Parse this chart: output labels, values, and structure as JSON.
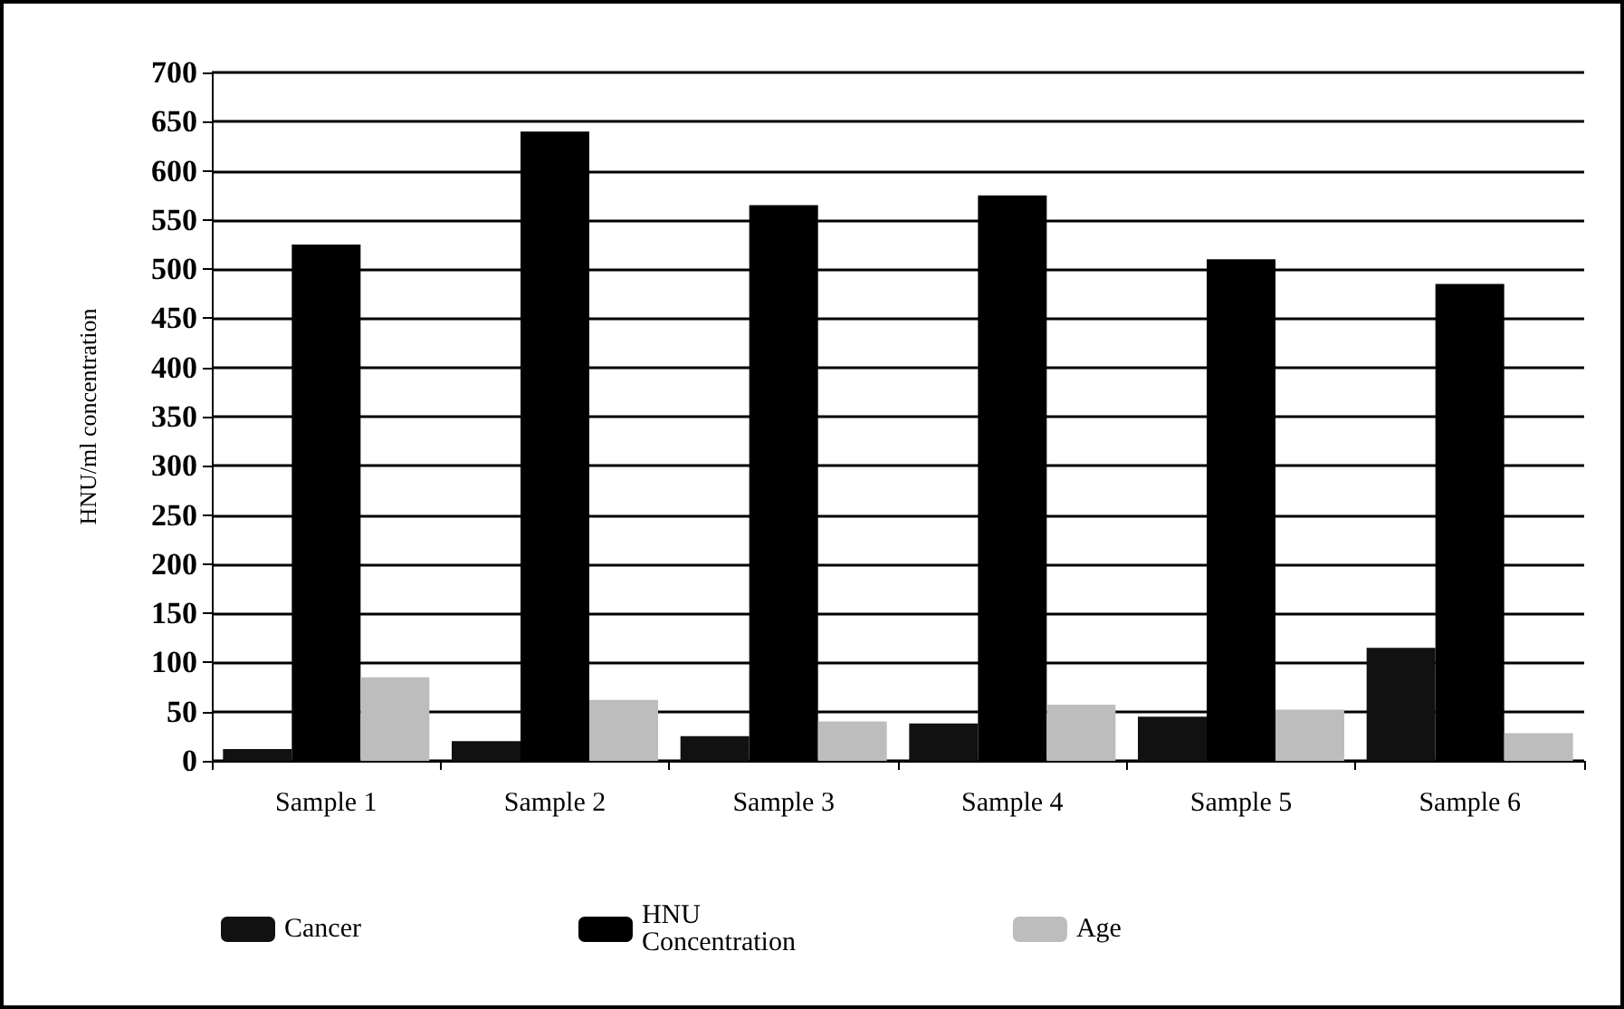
{
  "chart_data": {
    "type": "bar",
    "ylabel": "HNU/ml concentration",
    "categories": [
      "Sample 1",
      "Sample 2",
      "Sample 3",
      "Sample 4",
      "Sample 5",
      "Sample 6"
    ],
    "series": [
      {
        "name": "Cancer",
        "color": "#111111",
        "values": [
          12,
          20,
          25,
          38,
          45,
          115
        ]
      },
      {
        "name": "HNU Concentration",
        "color": "#000000",
        "values": [
          525,
          640,
          565,
          575,
          510,
          485
        ]
      },
      {
        "name": "Age",
        "color": "#bdbdbd",
        "values": [
          85,
          62,
          40,
          57,
          52,
          28
        ]
      }
    ],
    "ylim": [
      0,
      700
    ],
    "yticks": [
      0,
      50,
      100,
      150,
      200,
      250,
      300,
      350,
      400,
      450,
      500,
      550,
      600,
      650,
      700
    ],
    "grid": "y",
    "legend": "bottom"
  }
}
